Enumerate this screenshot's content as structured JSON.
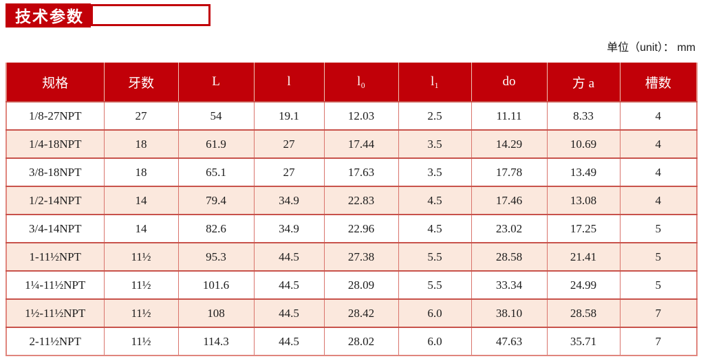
{
  "banner": {
    "title": "技术参数"
  },
  "unit_label": "单位（unit）： mm",
  "table": {
    "headers": [
      "规格",
      "牙数",
      "L",
      "l",
      "l₀",
      "l₁",
      "do",
      "方 a",
      "槽数"
    ],
    "rows": [
      [
        "1/8-27NPT",
        "27",
        "54",
        "19.1",
        "12.03",
        "2.5",
        "11.11",
        "8.33",
        "4"
      ],
      [
        "1/4-18NPT",
        "18",
        "61.9",
        "27",
        "17.44",
        "3.5",
        "14.29",
        "10.69",
        "4"
      ],
      [
        "3/8-18NPT",
        "18",
        "65.1",
        "27",
        "17.63",
        "3.5",
        "17.78",
        "13.49",
        "4"
      ],
      [
        "1/2-14NPT",
        "14",
        "79.4",
        "34.9",
        "22.83",
        "4.5",
        "17.46",
        "13.08",
        "4"
      ],
      [
        "3/4-14NPT",
        "14",
        "82.6",
        "34.9",
        "22.96",
        "4.5",
        "23.02",
        "17.25",
        "5"
      ],
      [
        "1-11½NPT",
        "11½",
        "95.3",
        "44.5",
        "27.38",
        "5.5",
        "28.58",
        "21.41",
        "5"
      ],
      [
        "1¼-11½NPT",
        "11½",
        "101.6",
        "44.5",
        "28.09",
        "5.5",
        "33.34",
        "24.99",
        "5"
      ],
      [
        "1½-11½NPT",
        "11½",
        "108",
        "44.5",
        "28.42",
        "6.0",
        "38.10",
        "28.58",
        "7"
      ],
      [
        "2-11½NPT",
        "11½",
        "114.3",
        "44.5",
        "28.02",
        "6.0",
        "47.63",
        "35.71",
        "7"
      ]
    ]
  },
  "colors": {
    "brand_red": "#c10008",
    "row_stripe_pink": "#fbe8dd",
    "border_salmon": "#d9736b",
    "header_text": "#ffffff"
  }
}
